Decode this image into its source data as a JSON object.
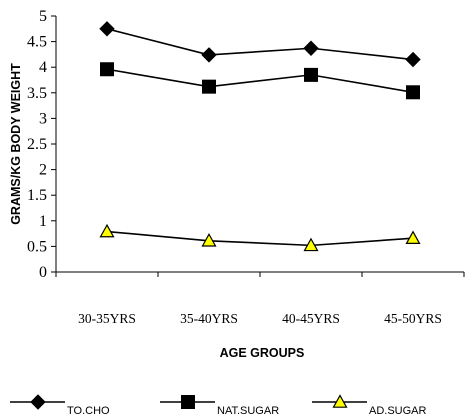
{
  "chart_data": {
    "type": "line",
    "categories": [
      "30-35YRS",
      "35-40YRS",
      "40-45YRS",
      "45-50YRS"
    ],
    "series": [
      {
        "name": "TO.CHO",
        "values": [
          4.75,
          4.24,
          4.37,
          4.15
        ],
        "marker": "diamond",
        "color": "#000000"
      },
      {
        "name": "NAT.SUGAR",
        "values": [
          3.96,
          3.62,
          3.85,
          3.51
        ],
        "marker": "square",
        "color": "#000000"
      },
      {
        "name": "AD.SUGAR",
        "values": [
          0.79,
          0.61,
          0.52,
          0.66
        ],
        "marker": "triangle",
        "color": "#000000",
        "fill": "#ffff00"
      }
    ],
    "xlabel": "AGE GROUPS",
    "ylabel": "GRAMS/KG BODY WEIGHT",
    "ylim": [
      0,
      5
    ],
    "yticks": [
      "0",
      "0.5",
      "1",
      "1.5",
      "2",
      "2.5",
      "3",
      "3.5",
      "4",
      "4.5",
      "5"
    ],
    "grid": false,
    "legend_position": "bottom"
  }
}
